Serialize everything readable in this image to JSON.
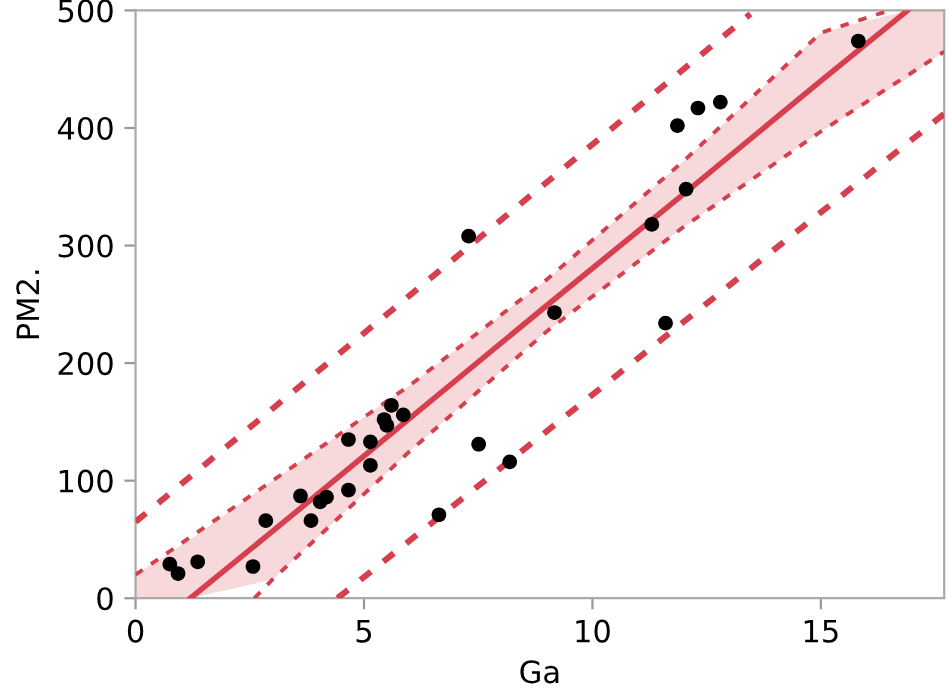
{
  "chart_data": {
    "type": "scatter",
    "xlabel": "Ga",
    "ylabel": "PM2.",
    "xlim": [
      0,
      17.7
    ],
    "ylim": [
      0,
      500
    ],
    "xticks": [
      0,
      5,
      10,
      15
    ],
    "yticks": [
      0,
      100,
      200,
      300,
      400,
      500
    ],
    "grid": false,
    "legend": false,
    "series": [
      {
        "type": "line",
        "color": "#d6404e",
        "line_style": "solid",
        "x": [
          0,
          1.2,
          3,
          6,
          9,
          12,
          15,
          16.9,
          17.7
        ],
        "values": [
          null,
          0,
          57,
          153,
          249,
          344,
          440,
          500,
          null
        ],
        "lower": [
          0,
          0,
          16,
          125,
          227,
          316,
          397,
          442,
          465
        ],
        "upper": [
          20,
          50,
          100,
          181,
          271,
          372,
          481,
          500,
          500
        ]
      },
      {
        "type": "line",
        "color": "#d6404e",
        "line_style": "dashed",
        "x": [
          0,
          3,
          6,
          9,
          12,
          15,
          16.5
        ],
        "values": [
          20,
          100,
          181,
          271,
          372,
          481,
          500
        ]
      },
      {
        "type": "line",
        "color": "#d6404e",
        "line_style": "dashed",
        "x": [
          2.6,
          3,
          6,
          9,
          12,
          15,
          17.7
        ],
        "values": [
          0,
          16,
          125,
          227,
          316,
          397,
          465
        ]
      },
      {
        "type": "line",
        "color": "#d6404e",
        "line_style": "dashed",
        "x": [
          0,
          13.46
        ],
        "values": [
          65,
          497
        ]
      },
      {
        "type": "line",
        "color": "#d6404e",
        "line_style": "dashed",
        "x": [
          4.42,
          17.7
        ],
        "values": [
          0,
          412
        ]
      },
      {
        "color": "#000000",
        "marker": "circle",
        "x": [
          0.75,
          0.93,
          1.36,
          2.57,
          2.85,
          3.61,
          3.84,
          4.04,
          4.18,
          4.66,
          4.66,
          5.14,
          5.14,
          5.44,
          5.5,
          5.6,
          5.86,
          6.64,
          7.29,
          7.51,
          8.19,
          9.17,
          11.3,
          11.6,
          12.05,
          11.86,
          12.31,
          12.8,
          15.82
        ],
        "values": [
          29,
          21,
          31,
          27,
          66,
          87,
          66,
          82,
          86,
          92,
          135,
          133,
          113,
          152,
          147,
          164,
          156,
          71,
          308,
          131,
          116,
          243,
          318,
          234,
          348,
          402,
          417,
          422,
          474
        ]
      }
    ]
  }
}
